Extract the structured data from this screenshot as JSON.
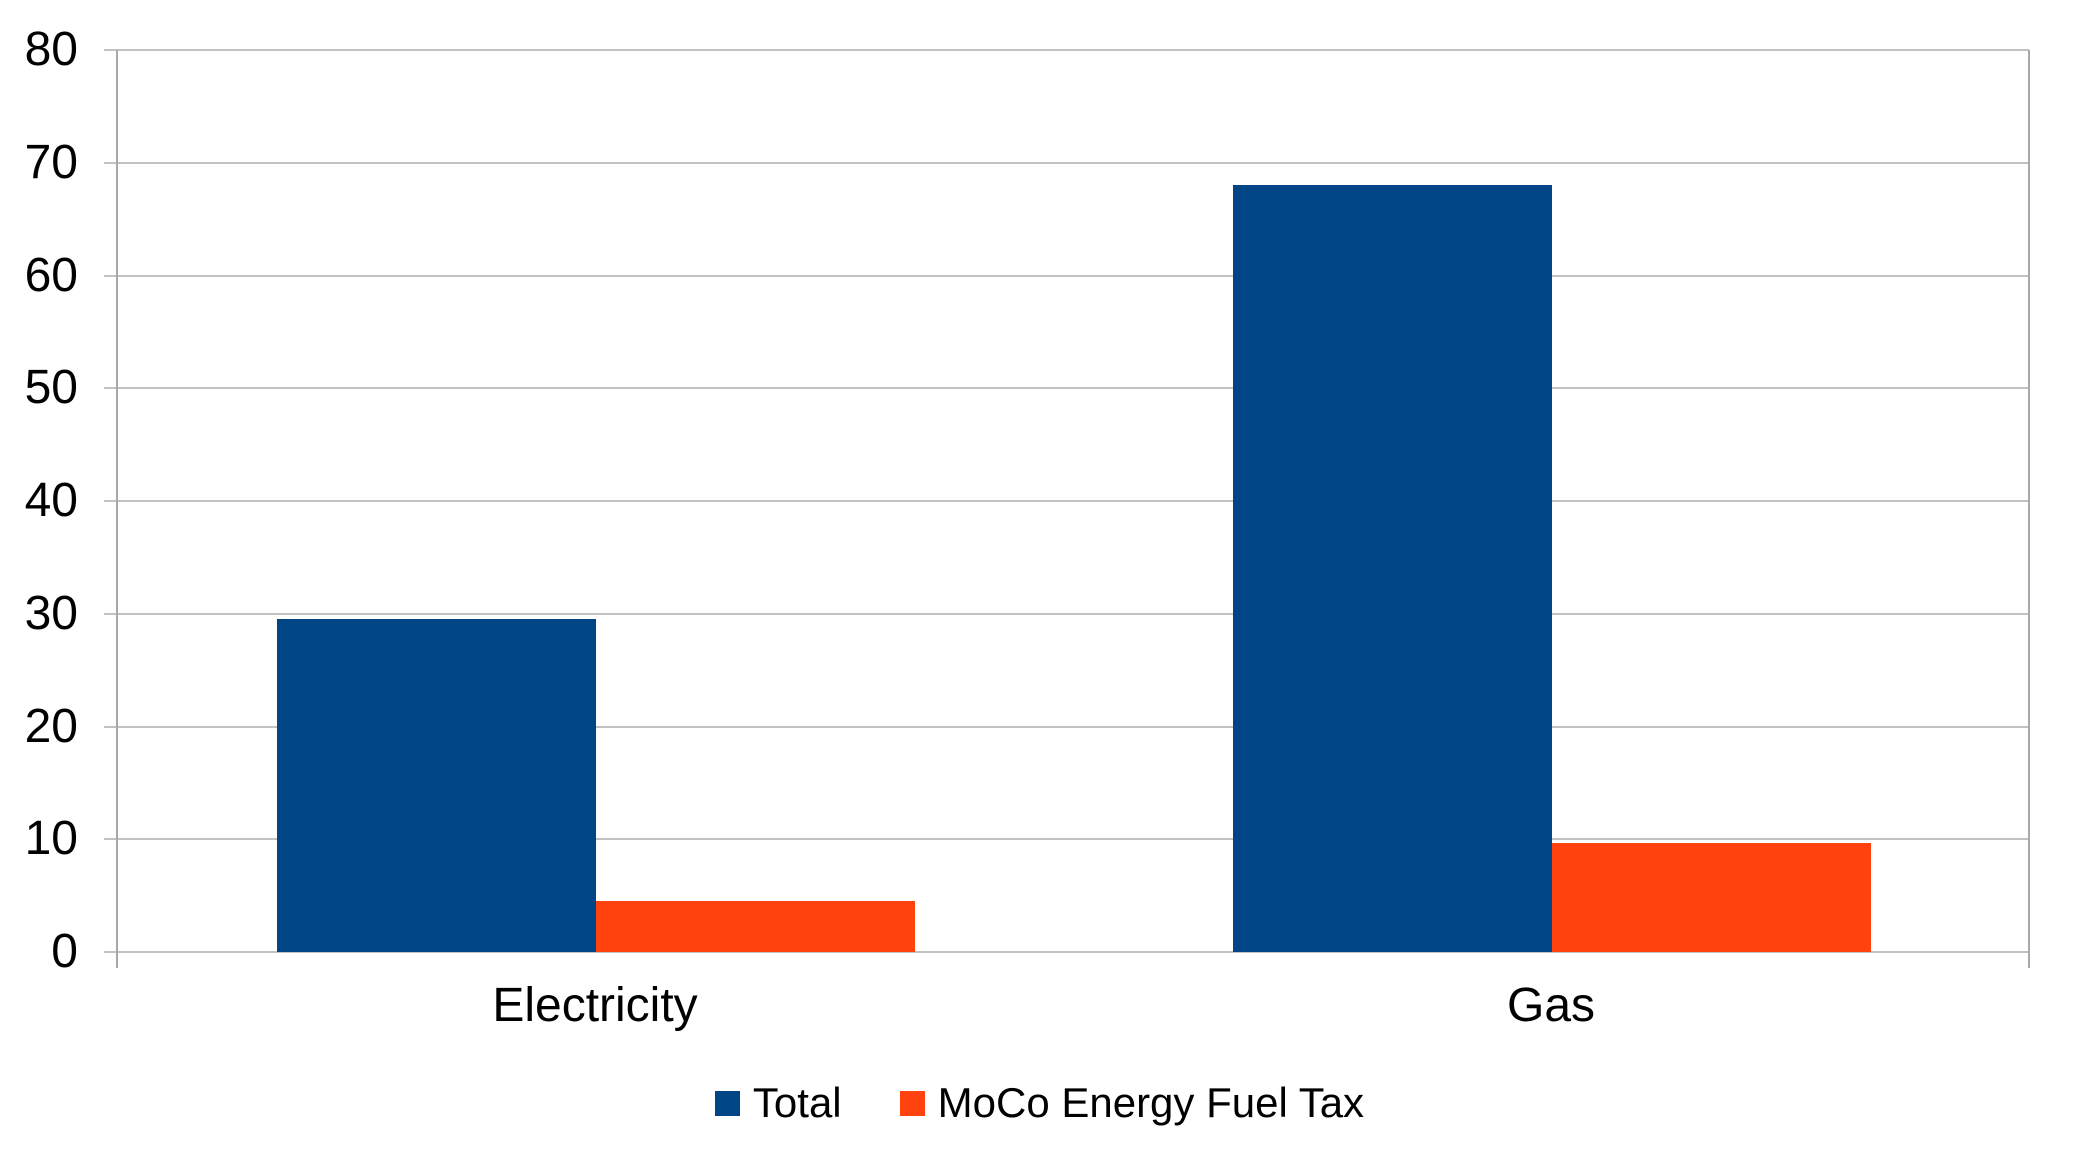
{
  "chart_data": {
    "type": "bar",
    "categories": [
      "Electricity",
      "Gas"
    ],
    "series": [
      {
        "name": "Total",
        "color": "#004586",
        "values": [
          29.5,
          68
        ]
      },
      {
        "name": "MoCo Energy Fuel Tax",
        "color": "#FF420E",
        "values": [
          4.5,
          9.7
        ]
      }
    ],
    "xlabel": "",
    "ylabel": "",
    "ylim": [
      0,
      80
    ],
    "yticks": [
      0,
      10,
      20,
      30,
      40,
      50,
      60,
      70,
      80
    ],
    "grid": true,
    "legend_position": "bottom",
    "colors": {
      "background": "#FFFFFF",
      "gridline": "#C2C2C2",
      "axis": "#A8A8A8",
      "text": "#000000"
    }
  }
}
